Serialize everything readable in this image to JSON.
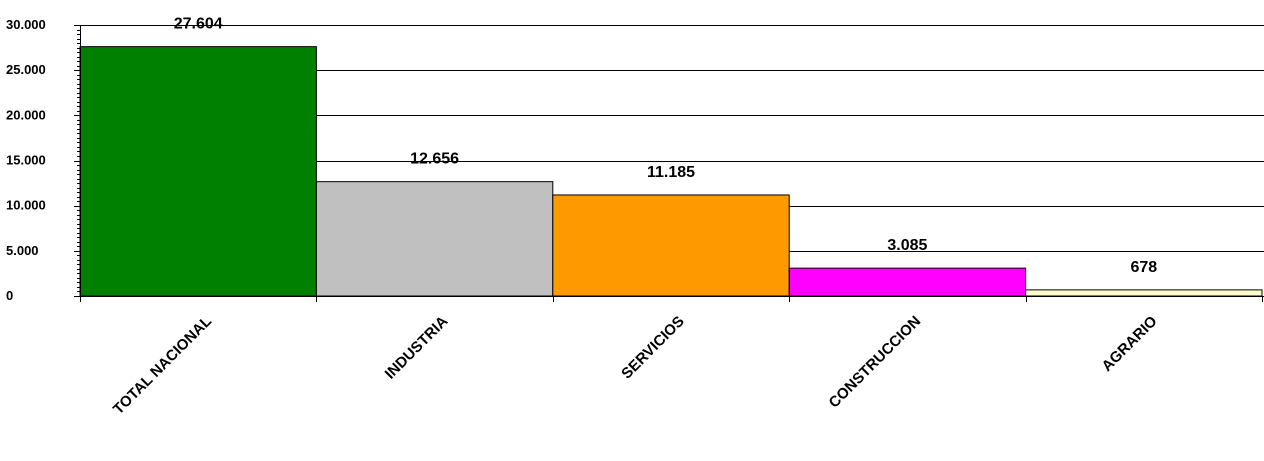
{
  "chart_data": {
    "type": "bar",
    "categories": [
      "TOTAL NACIONAL",
      "INDUSTRIA",
      "SERVICIOS",
      "CONSTRUCCION",
      "AGRARIO"
    ],
    "values": [
      27604,
      12656,
      11185,
      3085,
      678
    ],
    "value_labels": [
      "27.604",
      "12.656",
      "11.185",
      "3.085",
      "678"
    ],
    "bar_colors": [
      "#008000",
      "#c0c0c0",
      "#ff9900",
      "#ff00ff",
      "#ffffcc"
    ],
    "ylim": [
      0,
      30000
    ],
    "y_ticks": [
      0,
      5000,
      10000,
      15000,
      20000,
      25000,
      30000
    ],
    "y_tick_labels": [
      "0",
      "5.000",
      "10.000",
      "15.000",
      "20.000",
      "25.000",
      "30.000"
    ],
    "grid": true,
    "legend": "none",
    "title": "",
    "xlabel": "",
    "ylabel": ""
  }
}
